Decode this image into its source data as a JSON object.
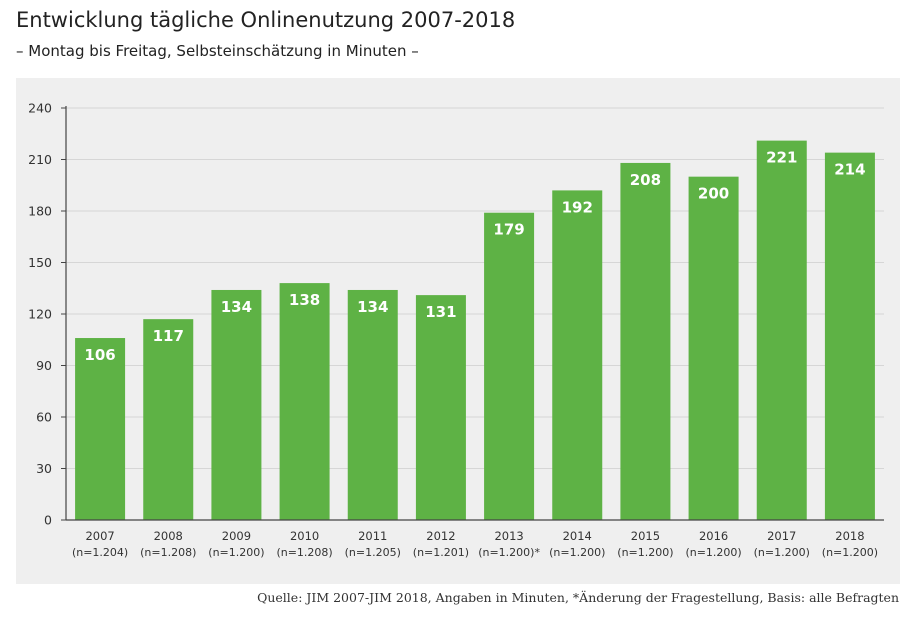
{
  "header": {
    "title": "Entwicklung tägliche Onlinenutzung 2007-2018",
    "subtitle": "– Montag bis Freitag, Selbsteinschätzung in Minuten –"
  },
  "footer": {
    "source": "Quelle: JIM 2007-JIM 2018, Angaben in Minuten, *Änderung der Fragestellung, Basis: alle Befragten"
  },
  "colors": {
    "bar": "#5eb245",
    "panel": "#efefef",
    "grid": "#d6d6d6",
    "axis": "#444444",
    "label": "#ffffff"
  },
  "chart_data": {
    "type": "bar",
    "title": "Entwicklung tägliche Onlinenutzung 2007-2018",
    "subtitle": "– Montag bis Freitag, Selbsteinschätzung in Minuten –",
    "xlabel": "",
    "ylabel": "",
    "ylim": [
      0,
      240
    ],
    "yticks": [
      0,
      30,
      60,
      90,
      120,
      150,
      180,
      210,
      240
    ],
    "grid": true,
    "categories": [
      "2007",
      "2008",
      "2009",
      "2010",
      "2011",
      "2012",
      "2013",
      "2014",
      "2015",
      "2016",
      "2017",
      "2018"
    ],
    "sublabels": [
      "(n=1.204)",
      "(n=1.208)",
      "(n=1.200)",
      "(n=1.208)",
      "(n=1.205)",
      "(n=1.201)",
      "(n=1.200)*",
      "(n=1.200)",
      "(n=1.200)",
      "(n=1.200)",
      "(n=1.200)",
      "(n=1.200)"
    ],
    "values": [
      106,
      117,
      134,
      138,
      134,
      131,
      179,
      192,
      208,
      200,
      221,
      214
    ]
  }
}
